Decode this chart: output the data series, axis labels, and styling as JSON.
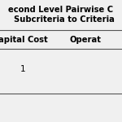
{
  "title_line1": "econd Level Pairwise C",
  "title_line2": "  Subcriteria to Criteria",
  "col_headers": [
    "apital Cost",
    "Operat"
  ],
  "cell_values": [
    [
      "1",
      ""
    ]
  ],
  "bg_color": "#f0f0f0",
  "line_color": "#555555",
  "title_fontsize": 7.2,
  "header_fontsize": 7.2,
  "cell_fontsize": 7.5,
  "title_bold": true
}
